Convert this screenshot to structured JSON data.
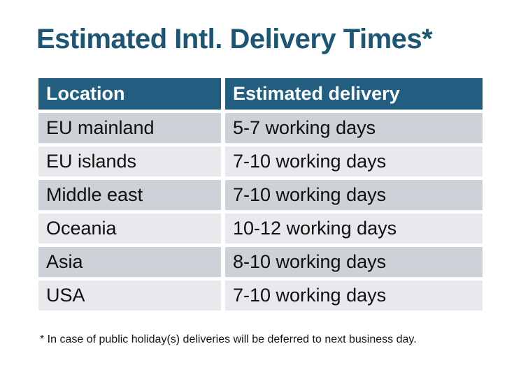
{
  "page": {
    "title": "Estimated Intl. Delivery Times*",
    "footnote": "* In case of public holiday(s) deliveries will be deferred to next business day."
  },
  "table": {
    "headers": [
      "Location",
      "Estimated delivery"
    ],
    "rows": [
      {
        "location": "EU mainland",
        "delivery": "5-7 working days"
      },
      {
        "location": "EU islands",
        "delivery": "7-10 working days"
      },
      {
        "location": "Middle east",
        "delivery": "7-10 working days"
      },
      {
        "location": "Oceania",
        "delivery": "10-12 working days"
      },
      {
        "location": "Asia",
        "delivery": "8-10 working days"
      },
      {
        "location": "USA",
        "delivery": "7-10 working days"
      }
    ]
  },
  "colors": {
    "header_bg": "#215e80",
    "title": "#1d5674",
    "row_dark": "#cdd1d8",
    "row_light": "#e7e9ed",
    "cell_text": "#0f0f0f",
    "footnote": "#141414"
  }
}
